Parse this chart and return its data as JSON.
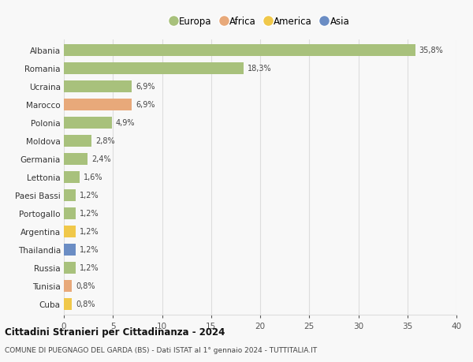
{
  "countries": [
    "Albania",
    "Romania",
    "Ucraina",
    "Marocco",
    "Polonia",
    "Moldova",
    "Germania",
    "Lettonia",
    "Paesi Bassi",
    "Portogallo",
    "Argentina",
    "Thailandia",
    "Russia",
    "Tunisia",
    "Cuba"
  ],
  "values": [
    35.8,
    18.3,
    6.9,
    6.9,
    4.9,
    2.8,
    2.4,
    1.6,
    1.2,
    1.2,
    1.2,
    1.2,
    1.2,
    0.8,
    0.8
  ],
  "labels": [
    "35,8%",
    "18,3%",
    "6,9%",
    "6,9%",
    "4,9%",
    "2,8%",
    "2,4%",
    "1,6%",
    "1,2%",
    "1,2%",
    "1,2%",
    "1,2%",
    "1,2%",
    "0,8%",
    "0,8%"
  ],
  "continents": [
    "Europa",
    "Europa",
    "Europa",
    "Africa",
    "Europa",
    "Europa",
    "Europa",
    "Europa",
    "Europa",
    "Europa",
    "America",
    "Asia",
    "Europa",
    "Africa",
    "America"
  ],
  "continent_colors": {
    "Europa": "#a8c17c",
    "Africa": "#e8a97a",
    "America": "#f0c84a",
    "Asia": "#6b8dc4"
  },
  "legend_order": [
    "Europa",
    "Africa",
    "America",
    "Asia"
  ],
  "title": "Cittadini Stranieri per Cittadinanza - 2024",
  "subtitle": "COMUNE DI PUEGNAGO DEL GARDA (BS) - Dati ISTAT al 1° gennaio 2024 - TUTTITALIA.IT",
  "xlim": [
    0,
    40
  ],
  "xticks": [
    0,
    5,
    10,
    15,
    20,
    25,
    30,
    35,
    40
  ],
  "background_color": "#f8f8f8",
  "grid_color": "#dddddd"
}
